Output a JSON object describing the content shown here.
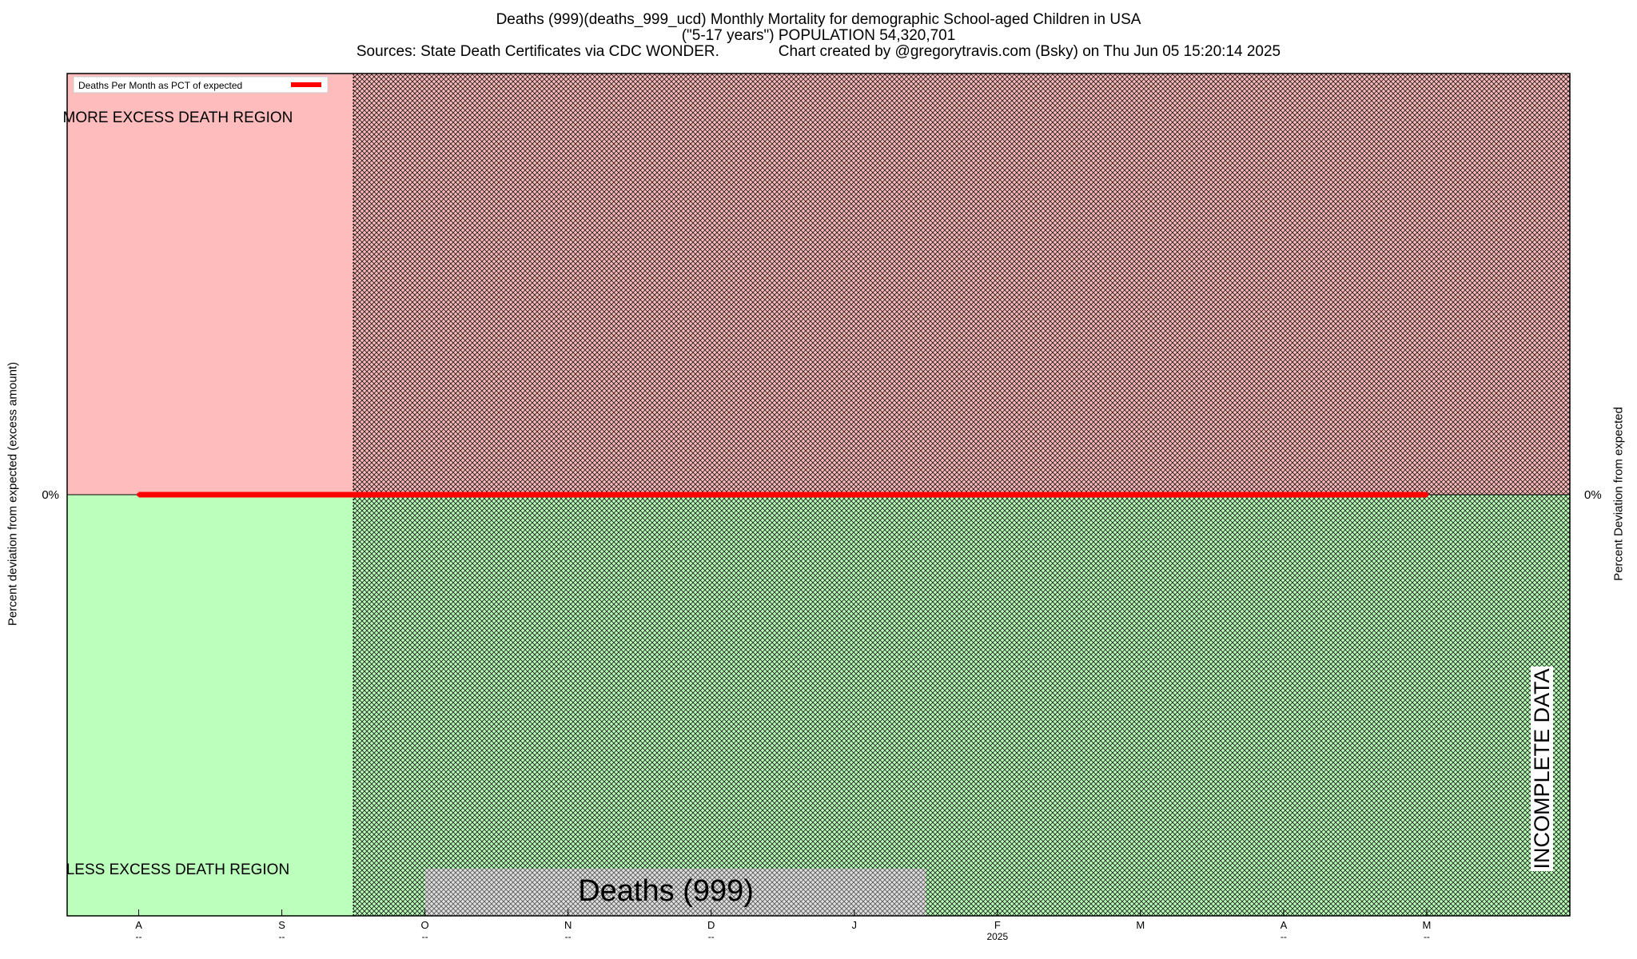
{
  "title": {
    "line1": "Deaths (999)(deaths_999_ucd) Monthly Mortality for demographic School-aged Children in USA",
    "line2": "(\"5-17 years\") POPULATION 54,320,701",
    "line3": "Sources: State Death Certificates via CDC WONDER.              Chart created by @gregorytravis.com (Bsky) on Thu Jun 05 15:20:14 2025"
  },
  "colors": {
    "excess_region": "#ffbcbc",
    "less_region": "#bcffbc",
    "hatch": "#000000",
    "series": "#ff0000",
    "watermark_bg": "#e0e0e0"
  },
  "chart_data": {
    "type": "line",
    "x": [
      "A",
      "S",
      "O",
      "N",
      "D",
      "J",
      "F",
      "M",
      "A",
      "M"
    ],
    "x_sublabels": [
      "--",
      "--",
      "--",
      "--",
      "--",
      "",
      "2025",
      "",
      "--",
      "--"
    ],
    "series": [
      {
        "name": "Deaths Per Month as PCT of expected",
        "values": [
          0,
          0,
          0,
          0,
          0,
          0,
          0,
          0,
          0,
          0
        ]
      }
    ],
    "xlim": [
      -0.5,
      10.0
    ],
    "ylim": [
      -1,
      1
    ],
    "y_ticks": [
      "0%"
    ],
    "y2_ticks": [
      "0%"
    ],
    "ylabel": "Percent deviation from expected (excess amount)",
    "y2label": "Percent Deviation from expected",
    "incomplete_data_from_x": 1.5,
    "legend_position": "top-left",
    "annotations": {
      "upper_region": "MORE EXCESS DEATH REGION",
      "lower_region": "LESS EXCESS DEATH REGION",
      "incomplete": "INCOMPLETE DATA",
      "watermark": "Deaths (999)"
    },
    "grid": false
  }
}
